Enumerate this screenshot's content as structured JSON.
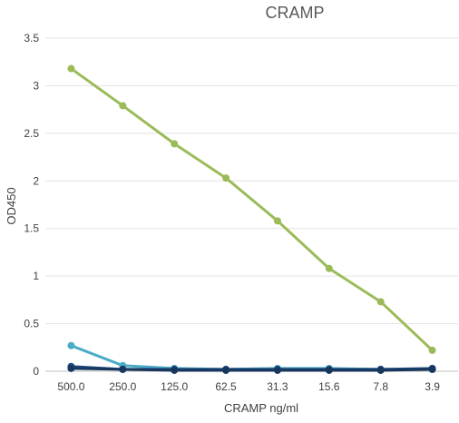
{
  "chart_data": {
    "type": "line",
    "title": "CRAMP",
    "xlabel": "CRAMP ng/ml",
    "ylabel": "OD450",
    "categories": [
      "500.0",
      "250.0",
      "125.0",
      "62.5",
      "31.3",
      "15.6",
      "7.8",
      "3.9"
    ],
    "y_ticks": [
      "0",
      "0.5",
      "1",
      "1.5",
      "2",
      "2.5",
      "3",
      "3.5"
    ],
    "ylim": [
      0,
      3.5
    ],
    "grid": true,
    "legend": "none",
    "series": [
      {
        "color": "#9bbb59",
        "values": [
          3.18,
          2.79,
          2.39,
          2.03,
          1.58,
          1.08,
          0.73,
          0.22
        ]
      },
      {
        "color": "#4bacc6",
        "values": [
          0.27,
          0.06,
          0.03,
          0.02,
          0.03,
          0.03,
          0.02,
          0.02
        ]
      },
      {
        "color": "#1f497d",
        "values": [
          0.05,
          0.02,
          0.02,
          0.02,
          0.02,
          0.02,
          0.02,
          0.03
        ]
      },
      {
        "color": "#17375e",
        "values": [
          0.03,
          0.02,
          0.01,
          0.01,
          0.01,
          0.01,
          0.01,
          0.02
        ]
      }
    ]
  }
}
